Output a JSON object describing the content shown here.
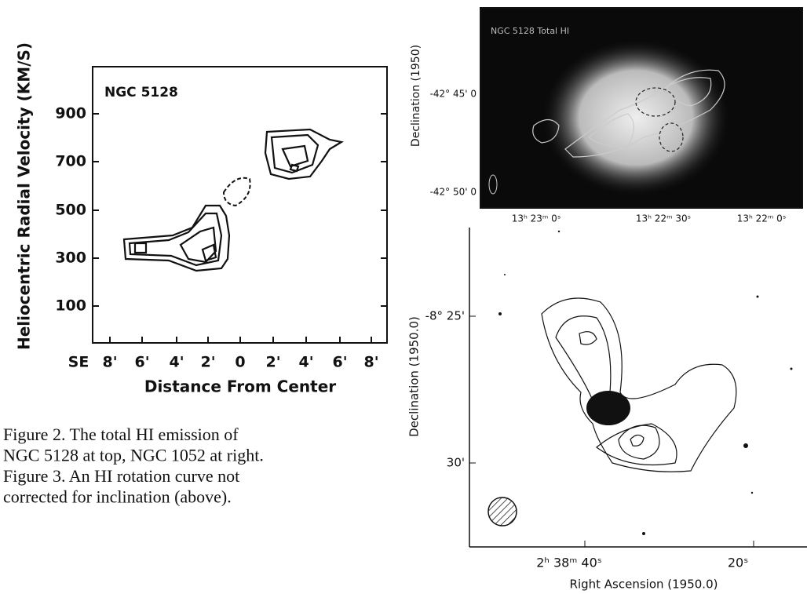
{
  "rotation_curve": {
    "label": "NGC 5128",
    "y_axis_label": "Heliocentric Radial Velocity (KM/S)",
    "y_ticks": [
      900,
      700,
      500,
      300,
      100
    ],
    "x_axis_label": "Distance From Center",
    "x_ticks": [
      "SE",
      "8'",
      "6'",
      "4'",
      "2'",
      "0",
      "2'",
      "4'",
      "6'",
      "8'"
    ]
  },
  "caption": [
    "Figure 2.  The total HI emission of",
    "NGC 5128 at top, NGC 1052 at right.",
    "Figure 3.  An HI rotation curve not",
    "corrected for inclination (above)."
  ],
  "map_top": {
    "label": "NGC 5128 Total HI",
    "y_axis_label": "Declination (1950)",
    "y_ticks": [
      "-42° 45' 0",
      "-42° 50' 0"
    ],
    "x_ticks": [
      "13ʰ 23ᵐ 0ˢ",
      "13ʰ 22ᵐ 30ˢ",
      "13ʰ 22ᵐ 0ˢ"
    ]
  },
  "map_bottom": {
    "y_axis_label": "Declination (1950.0)",
    "y_ticks": [
      "-8° 25'",
      "30'"
    ],
    "x_ticks": [
      "2ʰ 38ᵐ 40ˢ",
      "20ˢ"
    ],
    "x_axis_label": "Right Ascension (1950.0)"
  }
}
